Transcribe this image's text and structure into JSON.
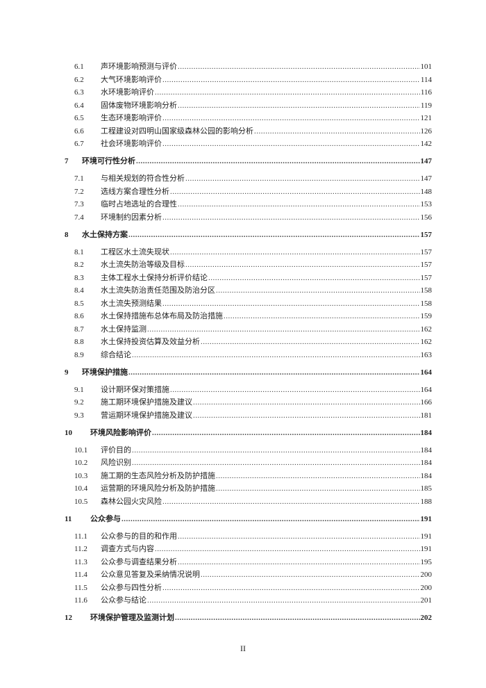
{
  "toc": [
    {
      "level": "sub",
      "num": "6.1",
      "title": "声环境影响预测与评价",
      "page": "101"
    },
    {
      "level": "sub",
      "num": "6.2",
      "title": "大气环境影响评价",
      "page": "114"
    },
    {
      "level": "sub",
      "num": "6.3",
      "title": "水环境影响评价",
      "page": "116"
    },
    {
      "level": "sub",
      "num": "6.4",
      "title": "固体废物环境影响分析",
      "page": "119"
    },
    {
      "level": "sub",
      "num": "6.5",
      "title": "生态环境影响评价",
      "page": "121"
    },
    {
      "level": "sub",
      "num": "6.6",
      "title": "工程建设对四明山国家级森林公园的影响分析",
      "page": "126"
    },
    {
      "level": "sub",
      "num": "6.7",
      "title": "社会环境影响评价",
      "page": "142"
    },
    {
      "level": "chapter",
      "num": "7",
      "title": "环境可行性分析",
      "page": "147"
    },
    {
      "level": "sub",
      "num": "7.1",
      "title": "与相关规划的符合性分析",
      "page": "147"
    },
    {
      "level": "sub",
      "num": "7.2",
      "title": "选线方案合理性分析",
      "page": "148"
    },
    {
      "level": "sub",
      "num": "7.3",
      "title": "临时占地选址的合理性",
      "page": "153"
    },
    {
      "level": "sub",
      "num": "7.4",
      "title": "环境制约因素分析",
      "page": "156"
    },
    {
      "level": "chapter",
      "num": "8",
      "title": "水土保持方案",
      "page": "157"
    },
    {
      "level": "sub",
      "num": "8.1",
      "title": "工程区水土流失现状",
      "page": "157"
    },
    {
      "level": "sub",
      "num": "8.2",
      "title": "水土流失防治等级及目标",
      "page": "157"
    },
    {
      "level": "sub",
      "num": "8.3",
      "title": "主体工程水土保持分析评价结论",
      "page": "157"
    },
    {
      "level": "sub",
      "num": "8.4",
      "title": "水土流失防治责任范围及防治分区",
      "page": "158"
    },
    {
      "level": "sub",
      "num": "8.5",
      "title": "水土流失预测结果",
      "page": "158"
    },
    {
      "level": "sub",
      "num": "8.6",
      "title": "水土保持措施布总体布局及防治措施",
      "page": "159"
    },
    {
      "level": "sub",
      "num": "8.7",
      "title": "水土保持监测",
      "page": "162"
    },
    {
      "level": "sub",
      "num": "8.8",
      "title": "水土保持投资估算及效益分析",
      "page": "162"
    },
    {
      "level": "sub",
      "num": "8.9",
      "title": "综合结论",
      "page": "163"
    },
    {
      "level": "chapter",
      "num": "9",
      "title": "环境保护措施",
      "page": "164"
    },
    {
      "level": "sub",
      "num": "9.1",
      "title": "设计期环保对策措施",
      "page": "164"
    },
    {
      "level": "sub",
      "num": "9.2",
      "title": "施工期环境保护措施及建议",
      "page": "166"
    },
    {
      "level": "sub",
      "num": "9.3",
      "title": "营运期环境保护措施及建议",
      "page": "181"
    },
    {
      "level": "chapter",
      "num": "10",
      "title": "环境风险影响评价",
      "page": "184"
    },
    {
      "level": "sub",
      "num": "10.1",
      "title": "评价目的",
      "page": "184"
    },
    {
      "level": "sub",
      "num": "10.2",
      "title": "风险识别",
      "page": "184"
    },
    {
      "level": "sub",
      "num": "10.3",
      "title": "施工期的生态风险分析及防护措施",
      "page": "184"
    },
    {
      "level": "sub",
      "num": "10.4",
      "title": "运营期的环境风险分析及防护措施",
      "page": "185"
    },
    {
      "level": "sub",
      "num": "10.5",
      "title": "森林公园火灾风险",
      "page": "188"
    },
    {
      "level": "chapter",
      "num": "11",
      "title": "公众参与",
      "page": "191"
    },
    {
      "level": "sub",
      "num": "11.1",
      "title": "公众参与的目的和作用",
      "page": "191"
    },
    {
      "level": "sub",
      "num": "11.2",
      "title": "调查方式与内容",
      "page": "191"
    },
    {
      "level": "sub",
      "num": "11.3",
      "title": "公众参与调查结果分析",
      "page": "195"
    },
    {
      "level": "sub",
      "num": "11.4",
      "title": "公众意见答复及采纳情况说明",
      "page": "200"
    },
    {
      "level": "sub",
      "num": "11.5",
      "title": "公众参与四性分析",
      "page": "200"
    },
    {
      "level": "sub",
      "num": "11.6",
      "title": "公众参与结论",
      "page": "201"
    },
    {
      "level": "chapter",
      "num": "12",
      "title": "环境保护管理及监测计划",
      "page": "202"
    }
  ],
  "footer": {
    "page_number": "II"
  }
}
